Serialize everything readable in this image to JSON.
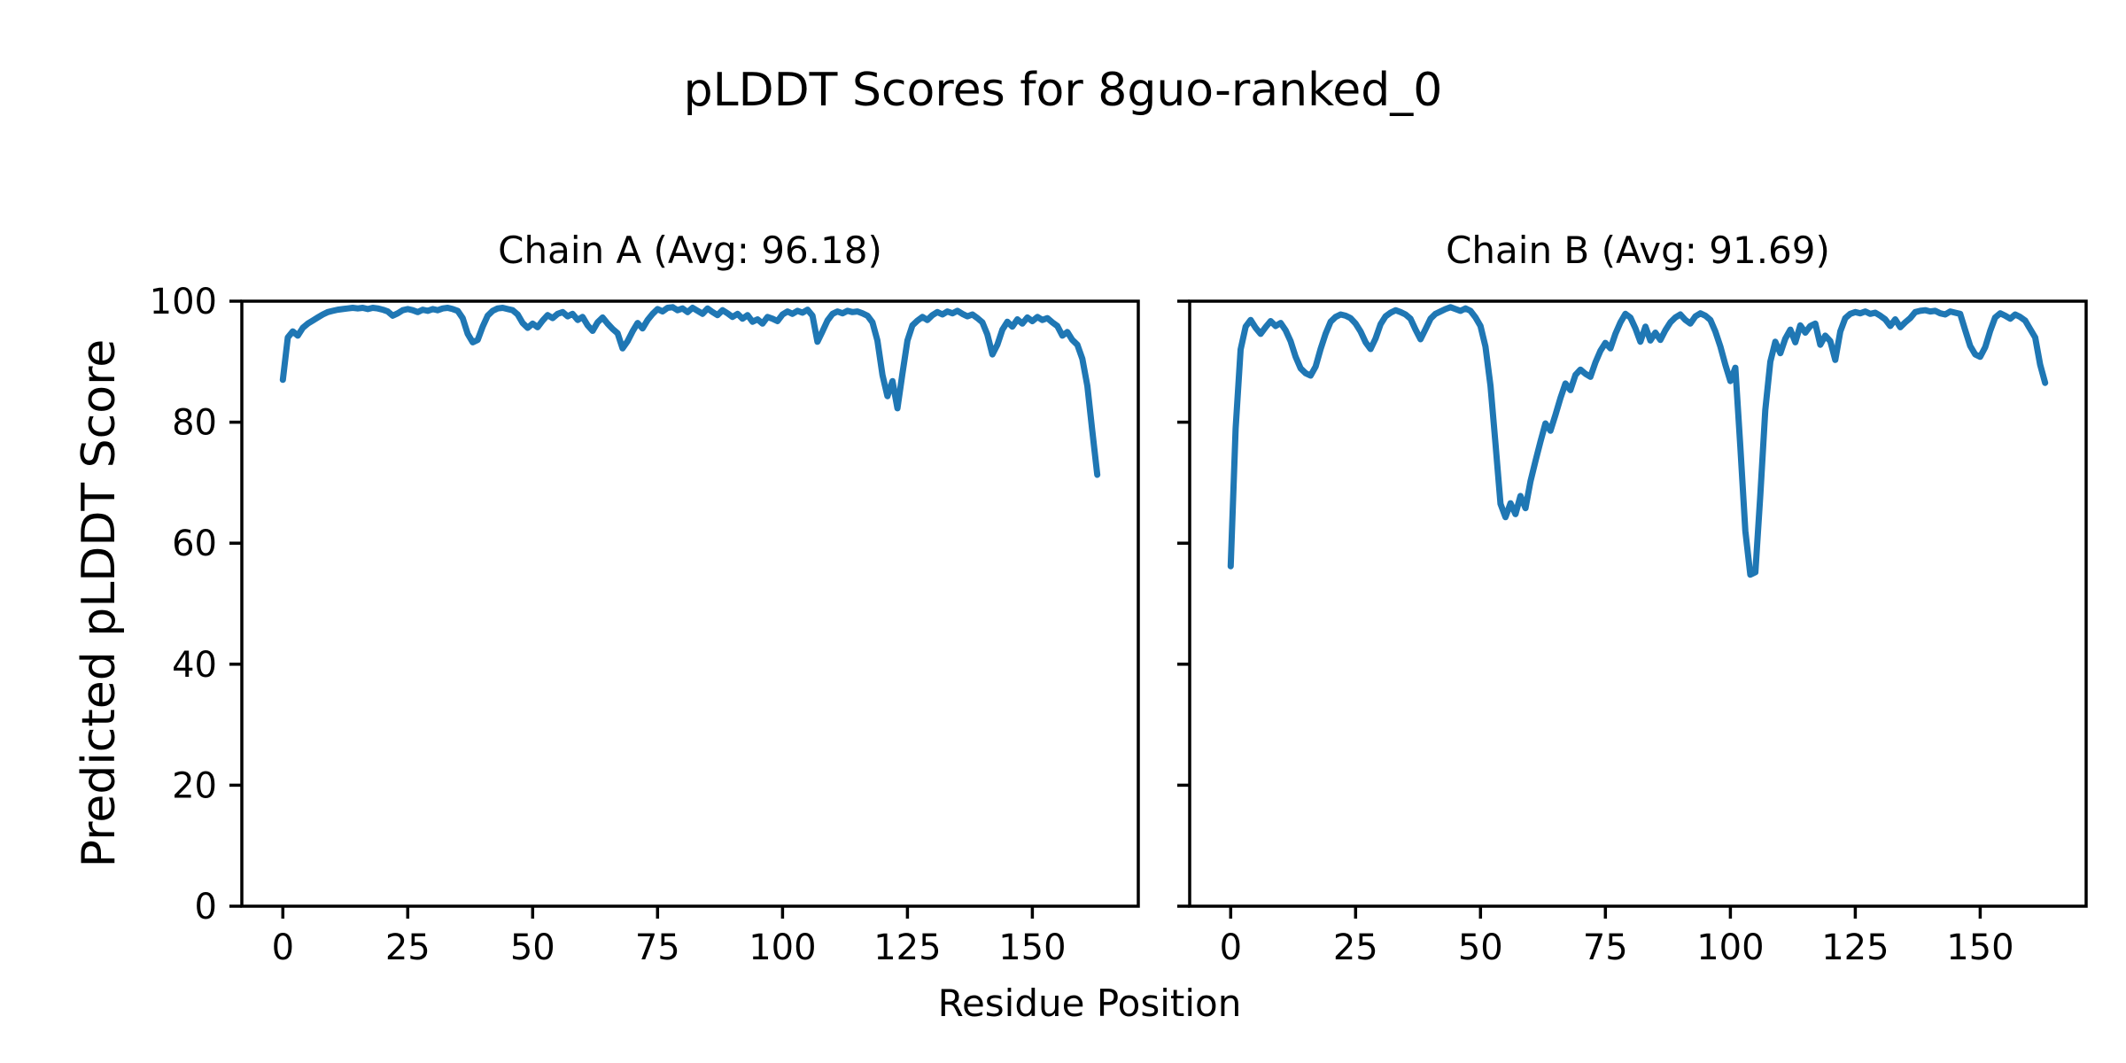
{
  "figure": {
    "title": "pLDDT Scores for 8guo-ranked_0",
    "xlabel": "Residue Position",
    "ylabel": "Predicted pLDDT Score",
    "background": "#ffffff",
    "line_color": "#1f77b4"
  },
  "chart_data": [
    {
      "type": "line",
      "title": "Chain A (Avg: 96.18)",
      "avg": 96.18,
      "xlabel": "Residue Position",
      "ylabel": "Predicted pLDDT Score",
      "xlim": [
        -8.2,
        171.2
      ],
      "ylim": [
        0,
        100
      ],
      "xticks": [
        0,
        25,
        50,
        75,
        100,
        125,
        150
      ],
      "yticks": [
        0,
        20,
        40,
        60,
        80,
        100
      ],
      "show_ytick_labels": true,
      "grid": false,
      "legend": "none",
      "x_start": 0,
      "x_step": 1,
      "series": [
        {
          "name": "Chain A pLDDT",
          "color": "#1f77b4",
          "values": [
            87.0,
            94.0,
            95.0,
            94.3,
            95.6,
            96.3,
            96.8,
            97.3,
            97.8,
            98.2,
            98.4,
            98.6,
            98.7,
            98.8,
            98.9,
            98.8,
            98.9,
            98.7,
            98.9,
            98.8,
            98.6,
            98.3,
            97.6,
            98.0,
            98.5,
            98.7,
            98.5,
            98.2,
            98.6,
            98.4,
            98.7,
            98.5,
            98.8,
            98.9,
            98.7,
            98.4,
            97.2,
            94.6,
            93.2,
            93.6,
            95.8,
            97.6,
            98.4,
            98.8,
            98.9,
            98.7,
            98.5,
            97.8,
            96.4,
            95.6,
            96.3,
            95.7,
            96.8,
            97.7,
            97.2,
            97.9,
            98.2,
            97.5,
            97.9,
            96.9,
            97.4,
            96.0,
            95.1,
            96.5,
            97.3,
            96.3,
            95.4,
            94.7,
            92.2,
            93.4,
            95.0,
            96.4,
            95.5,
            96.9,
            97.9,
            98.7,
            98.3,
            98.9,
            99.0,
            98.5,
            98.8,
            98.2,
            98.9,
            98.4,
            97.9,
            98.8,
            98.2,
            97.7,
            98.5,
            98.0,
            97.4,
            97.9,
            97.1,
            97.7,
            96.6,
            97.0,
            96.3,
            97.4,
            97.1,
            96.7,
            97.8,
            98.3,
            97.9,
            98.4,
            98.1,
            98.6,
            97.6,
            93.3,
            95.0,
            96.8,
            97.9,
            98.3,
            98.0,
            98.4,
            98.2,
            98.3,
            98.0,
            97.6,
            96.5,
            93.5,
            87.8,
            84.3,
            86.8,
            82.3,
            88.0,
            93.5,
            96.0,
            96.8,
            97.4,
            96.9,
            97.7,
            98.2,
            97.8,
            98.3,
            98.0,
            98.4,
            97.9,
            97.5,
            97.8,
            97.2,
            96.5,
            94.5,
            91.2,
            92.8,
            95.3,
            96.6,
            95.8,
            97.0,
            96.3,
            97.3,
            96.7,
            97.4,
            96.9,
            97.2,
            96.5,
            95.9,
            94.3,
            94.9,
            93.6,
            92.8,
            90.5,
            86.0,
            78.5,
            71.3
          ]
        }
      ]
    },
    {
      "type": "line",
      "title": "Chain B (Avg: 91.69)",
      "avg": 91.69,
      "xlabel": "Residue Position",
      "ylabel": "Predicted pLDDT Score",
      "xlim": [
        -8.2,
        171.2
      ],
      "ylim": [
        0,
        100
      ],
      "xticks": [
        0,
        25,
        50,
        75,
        100,
        125,
        150
      ],
      "yticks": [
        0,
        20,
        40,
        60,
        80,
        100
      ],
      "show_ytick_labels": false,
      "grid": false,
      "legend": "none",
      "x_start": 0,
      "x_step": 1,
      "series": [
        {
          "name": "Chain B pLDDT",
          "color": "#1f77b4",
          "values": [
            56.2,
            79.0,
            92.0,
            95.8,
            96.9,
            95.6,
            94.6,
            95.7,
            96.7,
            95.9,
            96.4,
            95.2,
            93.4,
            90.8,
            88.9,
            88.1,
            87.7,
            89.2,
            92.1,
            94.6,
            96.6,
            97.4,
            97.8,
            97.6,
            97.2,
            96.3,
            95.0,
            93.2,
            92.1,
            93.8,
            96.2,
            97.5,
            98.1,
            98.5,
            98.2,
            97.8,
            97.1,
            95.3,
            93.7,
            95.4,
            97.1,
            97.9,
            98.3,
            98.7,
            99.0,
            98.7,
            98.4,
            98.8,
            98.4,
            97.3,
            95.9,
            92.5,
            86.0,
            76.5,
            66.5,
            64.3,
            66.6,
            64.8,
            67.8,
            65.8,
            70.2,
            73.6,
            76.8,
            79.8,
            78.6,
            81.2,
            84.0,
            86.4,
            85.3,
            87.8,
            88.7,
            88.0,
            87.5,
            89.9,
            91.8,
            93.1,
            92.2,
            94.6,
            96.5,
            97.9,
            97.3,
            95.5,
            93.3,
            95.8,
            93.5,
            94.8,
            93.6,
            95.2,
            96.5,
            97.3,
            97.8,
            96.9,
            96.3,
            97.5,
            98.0,
            97.6,
            96.9,
            95.0,
            92.5,
            89.5,
            86.8,
            89.0,
            76.0,
            62.0,
            54.8,
            55.2,
            68.0,
            82.0,
            90.0,
            93.3,
            91.4,
            93.8,
            95.3,
            93.2,
            96.0,
            94.8,
            95.9,
            96.3,
            92.8,
            94.3,
            93.4,
            90.3,
            95.0,
            97.2,
            97.9,
            98.2,
            98.0,
            98.3,
            97.9,
            98.1,
            97.6,
            97.0,
            95.9,
            97.0,
            95.7,
            96.5,
            97.2,
            98.2,
            98.4,
            98.5,
            98.3,
            98.4,
            98.0,
            97.8,
            98.3,
            98.1,
            97.9,
            95.2,
            92.6,
            91.2,
            90.8,
            92.4,
            95.1,
            97.3,
            98.0,
            97.6,
            97.1,
            97.8,
            97.4,
            96.8,
            95.4,
            94.0,
            89.5,
            86.5
          ]
        }
      ]
    }
  ]
}
